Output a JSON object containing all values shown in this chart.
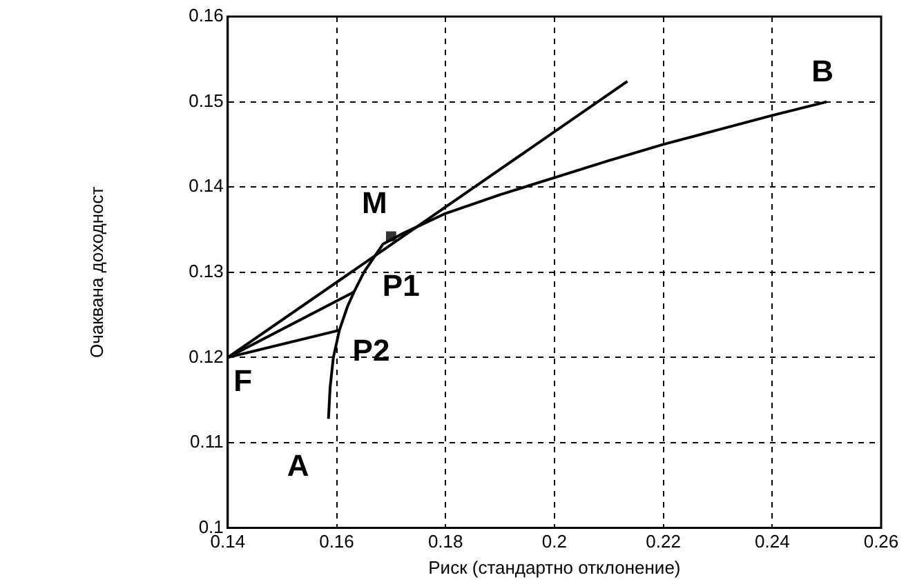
{
  "chart_data": {
    "type": "line",
    "xlabel": "Риск (стандартно отклонение)",
    "ylabel": "Очаквана доходност",
    "xlim": [
      0.14,
      0.26
    ],
    "xticks": [
      0.14,
      0.16,
      0.18,
      0.2,
      0.22,
      0.24,
      0.26
    ],
    "ylim": [
      0.1,
      0.16
    ],
    "yticks": [
      0.1,
      0.11,
      0.12,
      0.13,
      0.14,
      0.15,
      0.16
    ],
    "grid": true,
    "legend": false,
    "marker": "none",
    "line_style": "solid",
    "series": [
      {
        "color": "#000000",
        "x": [
          0.1585,
          0.1588,
          0.1594,
          0.1605,
          0.162,
          0.1632,
          0.165,
          0.1685,
          0.172,
          0.18,
          0.19,
          0.2,
          0.21,
          0.22,
          0.23,
          0.24,
          0.25
        ],
        "values": [
          0.1128,
          0.1165,
          0.12,
          0.1232,
          0.126,
          0.1277,
          0.13,
          0.1333,
          0.1345,
          0.1369,
          0.1391,
          0.1411,
          0.1431,
          0.145,
          0.1467,
          0.1484,
          0.15
        ]
      },
      {
        "color": "#000000",
        "x": [
          0.14,
          0.2134
        ],
        "values": [
          0.12,
          0.1524
        ]
      },
      {
        "color": "#000000",
        "x": [
          0.14,
          0.1632
        ],
        "values": [
          0.12,
          0.1277
        ]
      },
      {
        "color": "#000000",
        "x": [
          0.14,
          0.1605
        ],
        "values": [
          0.12,
          0.1232
        ]
      },
      {
        "type": "scatter",
        "marker": "square",
        "color": "#333333",
        "x": [
          0.17
        ],
        "values": [
          0.1342
        ]
      }
    ],
    "annotations": [
      {
        "text": "A",
        "x": 0.1585,
        "y": 0.1128
      },
      {
        "text": "B",
        "x": 0.25,
        "y": 0.15
      },
      {
        "text": "F",
        "x": 0.14,
        "y": 0.12
      },
      {
        "text": "M",
        "x": 0.17,
        "y": 0.1342
      },
      {
        "text": "P1",
        "x": 0.1632,
        "y": 0.1277
      },
      {
        "text": "P2",
        "x": 0.1605,
        "y": 0.1232
      }
    ]
  }
}
